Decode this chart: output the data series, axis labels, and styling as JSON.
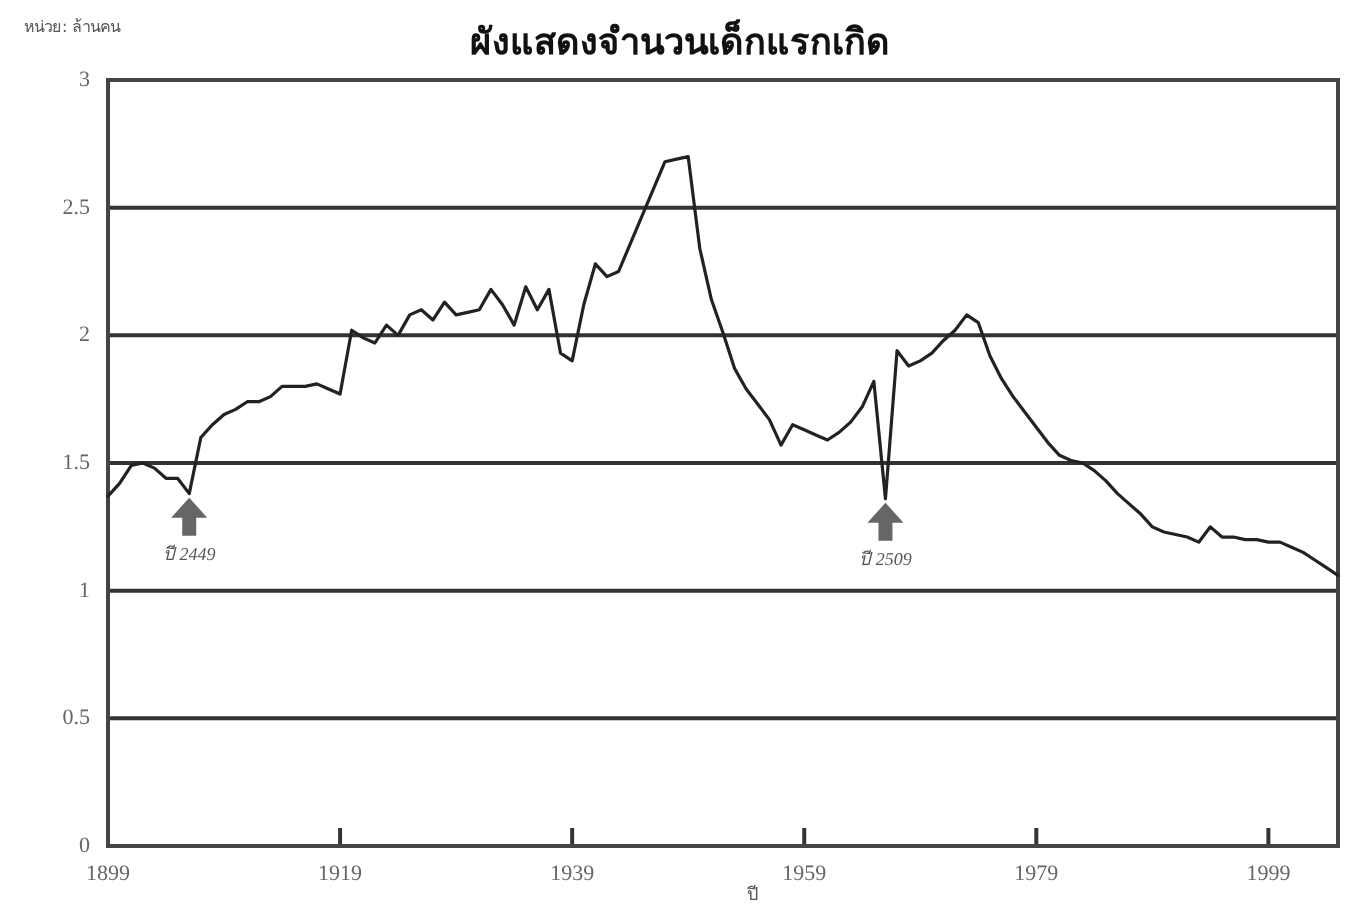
{
  "chart_data": {
    "type": "line",
    "title": "ผังแสดงจำนวนเด็กแรกเกิด",
    "ylabel": "หน่วย: ล้านคน",
    "xlabel": "ปี",
    "xlim": [
      1899,
      2005
    ],
    "xticks": [
      1899,
      1919,
      1939,
      1959,
      1979,
      1999
    ],
    "ylim": [
      0,
      3
    ],
    "yticks": [
      0,
      0.5,
      1,
      1.5,
      2,
      2.5,
      3
    ],
    "grid": "y",
    "marker": "none",
    "line_style": "solid",
    "x": [
      1899,
      1900,
      1901,
      1902,
      1903,
      1904,
      1905,
      1906,
      1907,
      1908,
      1909,
      1910,
      1911,
      1912,
      1913,
      1914,
      1915,
      1916,
      1917,
      1918,
      1919,
      1920,
      1921,
      1922,
      1923,
      1924,
      1925,
      1926,
      1927,
      1928,
      1929,
      1930,
      1931,
      1932,
      1933,
      1934,
      1935,
      1936,
      1937,
      1938,
      1939,
      1940,
      1941,
      1942,
      1943,
      1947,
      1948,
      1949,
      1950,
      1951,
      1952,
      1953,
      1954,
      1955,
      1956,
      1957,
      1958,
      1959,
      1960,
      1961,
      1962,
      1963,
      1964,
      1965,
      1966,
      1967,
      1968,
      1969,
      1970,
      1971,
      1972,
      1973,
      1974,
      1975,
      1976,
      1977,
      1978,
      1979,
      1980,
      1981,
      1982,
      1983,
      1984,
      1985,
      1986,
      1987,
      1988,
      1989,
      1990,
      1991,
      1992,
      1993,
      1994,
      1995,
      1996,
      1997,
      1998,
      1999,
      2000,
      2001,
      2002,
      2003,
      2004,
      2005
    ],
    "series": [
      {
        "color": "#222222",
        "values": [
          1.37,
          1.42,
          1.49,
          1.5,
          1.48,
          1.44,
          1.44,
          1.38,
          1.6,
          1.65,
          1.69,
          1.71,
          1.74,
          1.74,
          1.76,
          1.8,
          1.8,
          1.8,
          1.81,
          1.79,
          1.77,
          2.02,
          1.99,
          1.97,
          2.04,
          2.0,
          2.08,
          2.1,
          2.06,
          2.13,
          2.08,
          2.09,
          2.1,
          2.18,
          2.12,
          2.04,
          2.19,
          2.1,
          2.18,
          1.93,
          1.9,
          2.12,
          2.28,
          2.23,
          2.25,
          2.68,
          2.69,
          2.7,
          2.34,
          2.14,
          2.01,
          1.87,
          1.79,
          1.73,
          1.67,
          1.57,
          1.65,
          1.63,
          1.61,
          1.59,
          1.62,
          1.66,
          1.72,
          1.82,
          1.36,
          1.94,
          1.88,
          1.9,
          1.93,
          1.98,
          2.02,
          2.08,
          2.05,
          1.92,
          1.83,
          1.76,
          1.7,
          1.64,
          1.58,
          1.53,
          1.51,
          1.5,
          1.47,
          1.43,
          1.38,
          1.34,
          1.3,
          1.25,
          1.23,
          1.22,
          1.21,
          1.19,
          1.25,
          1.21,
          1.21,
          1.2,
          1.2,
          1.19,
          1.19,
          1.17,
          1.15,
          1.12,
          1.09,
          1.06
        ]
      }
    ],
    "annotations": [
      {
        "text": "ปี 2449",
        "x": 1906,
        "y": 1.38
      },
      {
        "text": "ปี 2509",
        "x": 1966,
        "y": 1.36
      }
    ]
  }
}
